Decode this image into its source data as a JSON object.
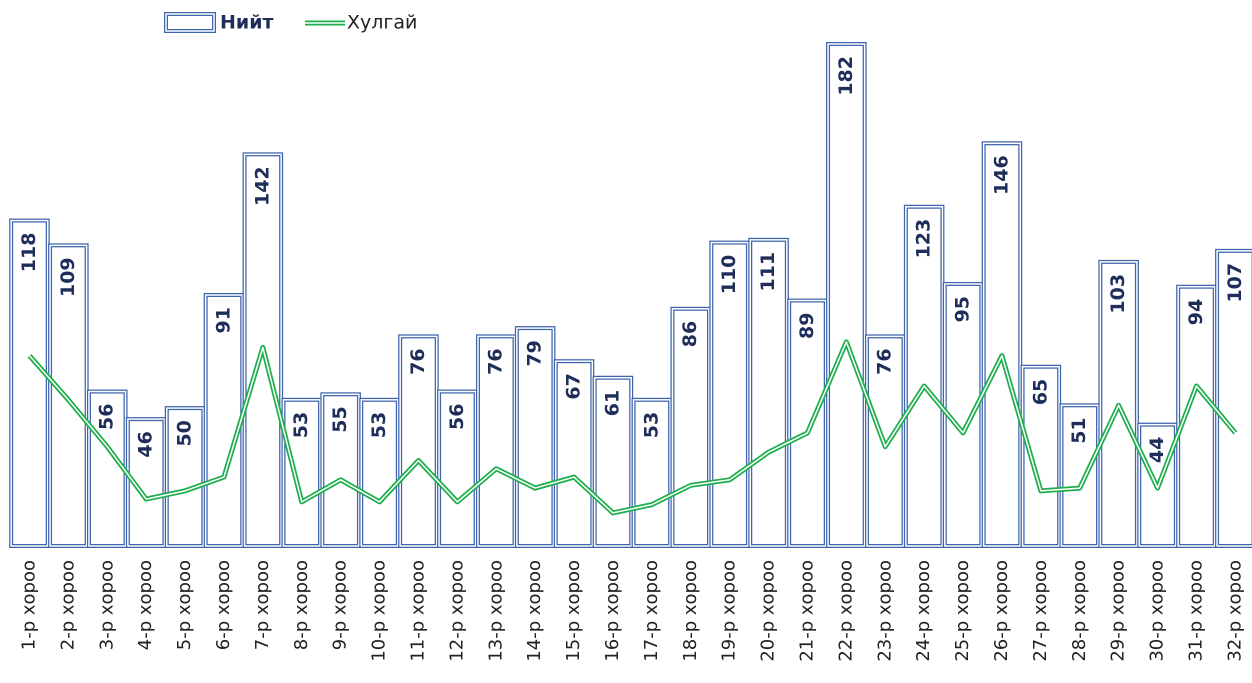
{
  "chart_data": {
    "type": "bar",
    "categories": [
      "1-р хороо",
      "2-р хороо",
      "3-р хороо",
      "4-р хороо",
      "5-р хороо",
      "6-р хороо",
      "7-р хороо",
      "8-р хороо",
      "9-р хороо",
      "10-р хороо",
      "11-р хороо",
      "12-р хороо",
      "13-р хороо",
      "14-р хороо",
      "15-р хороо",
      "16-р хороо",
      "17-р хороо",
      "18-р хороо",
      "19-р хороо",
      "20-р хороо",
      "21-р хороо",
      "22-р хороо",
      "23-р хороо",
      "24-р хороо",
      "25-р хороо",
      "26-р хороо",
      "27-р хороо",
      "28-р хороо",
      "29-р хороо",
      "30-р хороо",
      "31-р хороо",
      "32-р хороо"
    ],
    "series": [
      {
        "name": "Нийт",
        "type": "bar",
        "color": "#3e64ad",
        "values": [
          118,
          109,
          56,
          46,
          50,
          91,
          142,
          53,
          55,
          53,
          76,
          56,
          76,
          79,
          67,
          61,
          53,
          86,
          110,
          111,
          89,
          182,
          76,
          123,
          95,
          146,
          65,
          51,
          103,
          44,
          94,
          107
        ]
      },
      {
        "name": "Хулгай",
        "type": "line",
        "color": "#1fae4e",
        "values": [
          69,
          53,
          36,
          17,
          20,
          25,
          72,
          16,
          24,
          16,
          31,
          16,
          28,
          21,
          25,
          12,
          15,
          22,
          24,
          34,
          41,
          74,
          36,
          58,
          41,
          69,
          20,
          21,
          51,
          21,
          58,
          41
        ]
      }
    ],
    "ylim": [
      0,
      182
    ]
  }
}
